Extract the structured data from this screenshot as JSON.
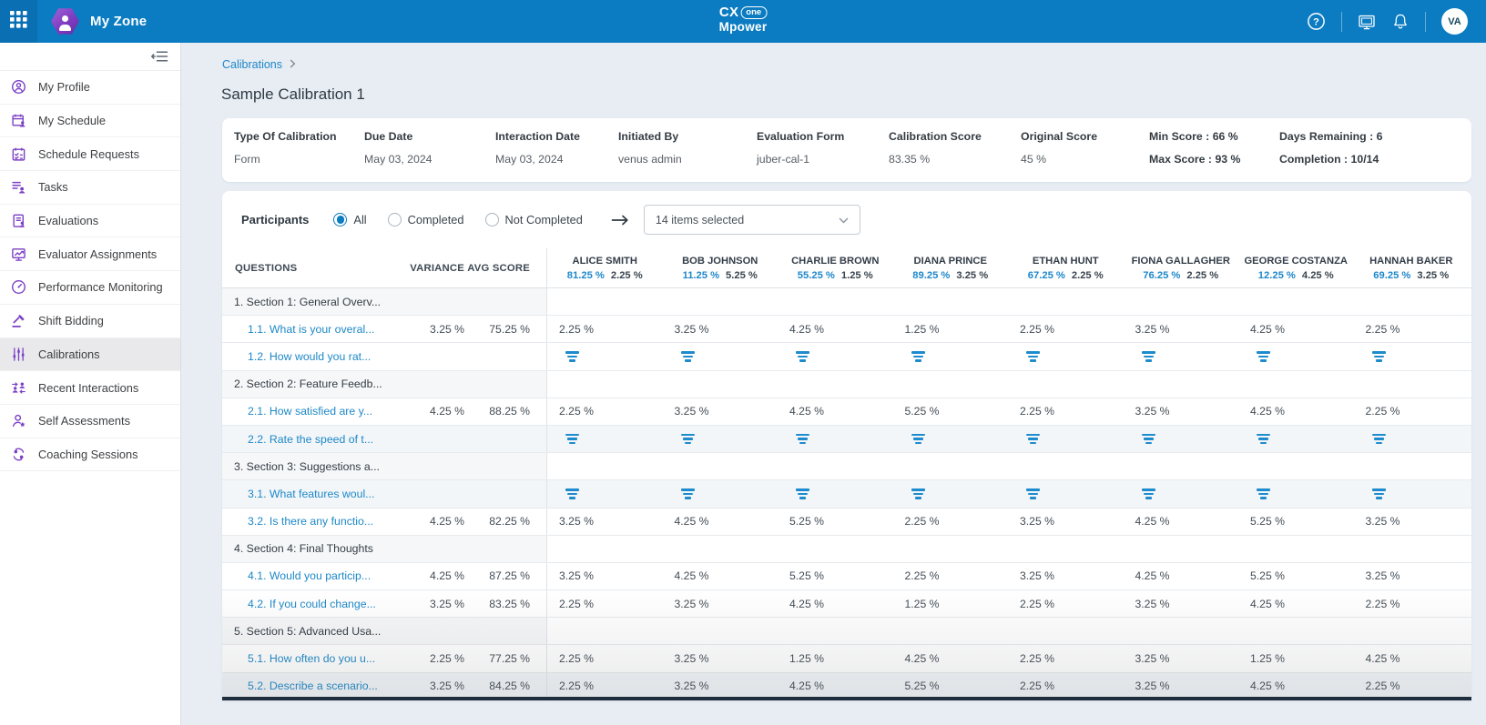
{
  "app": {
    "workspace": "My Zone",
    "avatar": "VA"
  },
  "logo": {
    "cx": "CX",
    "one": "one",
    "mpower": "Mpower"
  },
  "colors": {
    "top_bar": "#0b7cc2",
    "accent_blue": "#1d87cb",
    "icon_purple": "#7b3fc4",
    "link_blue": "#1e88c7"
  },
  "sidebar": {
    "items": [
      {
        "label": "My Profile",
        "icon": "profile",
        "active": false
      },
      {
        "label": "My Schedule",
        "icon": "schedule",
        "active": false
      },
      {
        "label": "Schedule Requests",
        "icon": "schedule-requests",
        "active": false
      },
      {
        "label": "Tasks",
        "icon": "tasks",
        "active": false
      },
      {
        "label": "Evaluations",
        "icon": "evaluations",
        "active": false
      },
      {
        "label": "Evaluator Assignments",
        "icon": "evaluator-assignments",
        "active": false
      },
      {
        "label": "Performance Monitoring",
        "icon": "performance-monitoring",
        "active": false
      },
      {
        "label": "Shift Bidding",
        "icon": "shift-bidding",
        "active": false
      },
      {
        "label": "Calibrations",
        "icon": "calibrations",
        "active": true
      },
      {
        "label": "Recent Interactions",
        "icon": "recent-interactions",
        "active": false
      },
      {
        "label": "Self Assessments",
        "icon": "self-assessments",
        "active": false
      },
      {
        "label": "Coaching Sessions",
        "icon": "coaching-sessions",
        "active": false
      }
    ]
  },
  "breadcrumb": {
    "items": [
      "Calibrations"
    ]
  },
  "page": {
    "title": "Sample Calibration 1"
  },
  "info_card": {
    "fields": [
      {
        "label": "Type Of Calibration",
        "value": "Form",
        "value_bold": false
      },
      {
        "label": "Due Date",
        "value": "May 03, 2024",
        "value_bold": false
      },
      {
        "label": "Interaction Date",
        "value": "May 03, 2024",
        "value_bold": false
      },
      {
        "label": "Initiated By",
        "value": "venus admin",
        "value_bold": false
      },
      {
        "label": "Evaluation Form",
        "value": "juber-cal-1",
        "value_bold": false
      },
      {
        "label": "Calibration Score",
        "value": "83.35 %",
        "value_bold": false
      },
      {
        "label": "Original Score",
        "value": "45 %",
        "value_bold": false
      },
      {
        "label": "Min Score : 66 %",
        "value": "Max Score : 93 %",
        "value_bold": true
      },
      {
        "label": "Days Remaining : 6",
        "value": "Completion : 10/14",
        "value_bold": true
      }
    ]
  },
  "participants_filter": {
    "label": "Participants",
    "options": [
      {
        "label": "All",
        "selected": true
      },
      {
        "label": "Completed",
        "selected": false
      },
      {
        "label": "Not Completed",
        "selected": false
      }
    ],
    "dropdown_value": "14 items selected"
  },
  "table": {
    "columns": [
      "QUESTIONS",
      "VARIANCE",
      "AVG SCORE"
    ],
    "participants": [
      {
        "name": "ALICE SMITH",
        "score": "81.25 %",
        "variance": "2.25 %"
      },
      {
        "name": "BOB JOHNSON",
        "score": "11.25 %",
        "variance": "5.25 %"
      },
      {
        "name": "CHARLIE BROWN",
        "score": "55.25 %",
        "variance": "1.25 %"
      },
      {
        "name": "DIANA PRINCE",
        "score": "89.25 %",
        "variance": "3.25 %"
      },
      {
        "name": "ETHAN HUNT",
        "score": "67.25 %",
        "variance": "2.25 %"
      },
      {
        "name": "FIONA GALLAGHER",
        "score": "76.25 %",
        "variance": "2.25 %"
      },
      {
        "name": "GEORGE COSTANZA",
        "score": "12.25 %",
        "variance": "4.25 %"
      },
      {
        "name": "HANNAH BAKER",
        "score": "69.25 %",
        "variance": "3.25 %"
      }
    ],
    "rows": [
      {
        "type": "section",
        "label": "1. Section 1: General Overv..."
      },
      {
        "type": "question",
        "label": "1.1. What is your overal...",
        "variance": "3.25 %",
        "avg": "75.25 %",
        "values": [
          "2.25 %",
          "3.25 %",
          "4.25 %",
          "1.25 %",
          "2.25 %",
          "3.25 %",
          "4.25 %",
          "2.25 %"
        ]
      },
      {
        "type": "text",
        "label": "1.2. How would you rat..."
      },
      {
        "type": "section",
        "label": "2. Section 2: Feature Feedb..."
      },
      {
        "type": "question",
        "label": "2.1. How satisfied are y...",
        "variance": "4.25 %",
        "avg": "88.25 %",
        "values": [
          "2.25 %",
          "3.25 %",
          "4.25 %",
          "5.25 %",
          "2.25 %",
          "3.25 %",
          "4.25 %",
          "2.25 %"
        ]
      },
      {
        "type": "text",
        "label": "2.2. Rate the speed of t...",
        "shaded": true
      },
      {
        "type": "section",
        "label": "3. Section 3: Suggestions a..."
      },
      {
        "type": "text",
        "label": "3.1. What features woul...",
        "shaded": true
      },
      {
        "type": "question",
        "label": "3.2. Is there any functio...",
        "variance": "4.25 %",
        "avg": "82.25 %",
        "values": [
          "3.25 %",
          "4.25 %",
          "5.25 %",
          "2.25 %",
          "3.25 %",
          "4.25 %",
          "5.25 %",
          "3.25 %"
        ]
      },
      {
        "type": "section",
        "label": "4. Section 4: Final Thoughts"
      },
      {
        "type": "question",
        "label": "4.1. Would you particip...",
        "variance": "4.25 %",
        "avg": "87.25 %",
        "values": [
          "3.25 %",
          "4.25 %",
          "5.25 %",
          "2.25 %",
          "3.25 %",
          "4.25 %",
          "5.25 %",
          "3.25 %"
        ]
      },
      {
        "type": "question",
        "label": "4.2. If you could change...",
        "variance": "3.25 %",
        "avg": "83.25 %",
        "values": [
          "2.25 %",
          "3.25 %",
          "4.25 %",
          "1.25 %",
          "2.25 %",
          "3.25 %",
          "4.25 %",
          "2.25 %"
        ]
      },
      {
        "type": "section",
        "label": "5. Section 5: Advanced Usa..."
      },
      {
        "type": "question",
        "label": "5.1. How often do you u...",
        "variance": "2.25 %",
        "avg": "77.25 %",
        "values": [
          "2.25 %",
          "3.25 %",
          "1.25 %",
          "4.25 %",
          "2.25 %",
          "3.25 %",
          "1.25 %",
          "4.25 %"
        ]
      },
      {
        "type": "question",
        "label": "5.2. Describe a scenario...",
        "variance": "3.25 %",
        "avg": "84.25 %",
        "shaded": true,
        "values": [
          "2.25 %",
          "3.25 %",
          "4.25 %",
          "5.25 %",
          "2.25 %",
          "3.25 %",
          "4.25 %",
          "2.25 %"
        ]
      }
    ]
  }
}
